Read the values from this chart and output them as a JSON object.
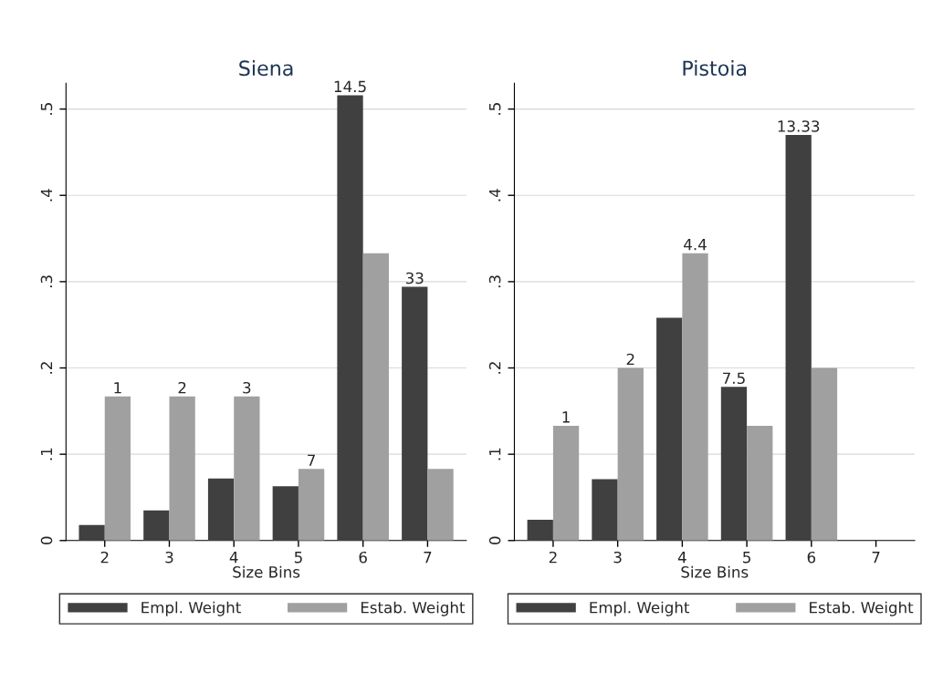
{
  "chart_data": [
    {
      "type": "bar",
      "title": "Siena",
      "xlabel": "Size Bins",
      "categories": [
        "2",
        "3",
        "4",
        "5",
        "6",
        "7"
      ],
      "series": [
        {
          "name": "Empl. Weight",
          "color": "#404040",
          "values": [
            0.018,
            0.035,
            0.072,
            0.063,
            0.516,
            0.294
          ]
        },
        {
          "name": "Estab. Weight",
          "color": "#a0a0a0",
          "values": [
            0.167,
            0.167,
            0.167,
            0.083,
            0.333,
            0.083
          ]
        }
      ],
      "ylim": [
        0,
        0.53
      ],
      "yticks": [
        0,
        {
          "value": 0.1,
          "label": ".1"
        },
        {
          "value": 0.2,
          "label": ".2"
        },
        {
          "value": 0.3,
          "label": ".3"
        },
        {
          "value": 0.4,
          "label": ".4"
        },
        {
          "value": 0.5,
          "label": ".5"
        }
      ],
      "grid": "y",
      "legend": "bottom",
      "annotations": [
        {
          "text": "1",
          "x": "2",
          "y": 0.167
        },
        {
          "text": "2",
          "x": "3",
          "y": 0.167
        },
        {
          "text": "3",
          "x": "4",
          "y": 0.167
        },
        {
          "text": "7",
          "x": "5",
          "y": 0.083
        },
        {
          "text": "14.5",
          "x": "6",
          "y": 0.516
        },
        {
          "text": "33",
          "x": "7",
          "y": 0.294
        }
      ]
    },
    {
      "type": "bar",
      "title": "Pistoia",
      "xlabel": "Size Bins",
      "categories": [
        "2",
        "3",
        "4",
        "5",
        "6",
        "7"
      ],
      "series": [
        {
          "name": "Empl. Weight",
          "color": "#404040",
          "values": [
            0.024,
            0.071,
            0.258,
            0.178,
            0.47,
            null
          ]
        },
        {
          "name": "Estab. Weight",
          "color": "#a0a0a0",
          "values": [
            0.133,
            0.2,
            0.333,
            0.133,
            0.2,
            null
          ]
        }
      ],
      "ylim": [
        0,
        0.53
      ],
      "yticks": [
        0,
        {
          "value": 0.1,
          "label": ".1"
        },
        {
          "value": 0.2,
          "label": ".2"
        },
        {
          "value": 0.3,
          "label": ".3"
        },
        {
          "value": 0.4,
          "label": ".4"
        },
        {
          "value": 0.5,
          "label": ".5"
        }
      ],
      "grid": "y",
      "legend": "bottom",
      "annotations": [
        {
          "text": "1",
          "x": "2",
          "y": 0.133
        },
        {
          "text": "2",
          "x": "3",
          "y": 0.2
        },
        {
          "text": "4.4",
          "x": "4",
          "y": 0.333
        },
        {
          "text": "7.5",
          "x": "5",
          "y": 0.178
        },
        {
          "text": "13.33",
          "x": "6",
          "y": 0.47
        }
      ]
    }
  ]
}
